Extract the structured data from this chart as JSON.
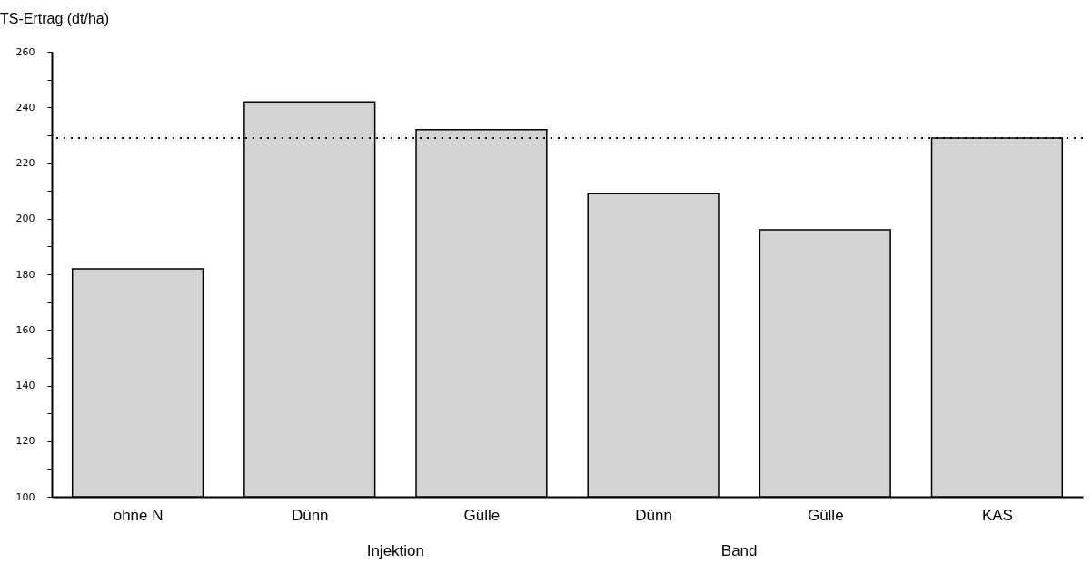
{
  "chart_data": {
    "type": "bar",
    "ylabel": "TS-Ertrag (dt/ha)",
    "categories": [
      "ohne N",
      "Dünn",
      "Gülle",
      "Dünn",
      "Gülle",
      "KAS"
    ],
    "values": [
      182,
      242,
      232,
      209,
      196,
      229
    ],
    "color": "#d4d4d4",
    "ylim": [
      100,
      260
    ],
    "yticks": [
      100,
      {
        "value": 110,
        "label": null
      },
      120,
      {
        "value": 130,
        "label": null
      },
      140,
      {
        "value": 150,
        "label": null
      },
      160,
      {
        "value": 170,
        "label": null
      },
      180,
      {
        "value": 190,
        "label": null
      },
      200,
      {
        "value": 210,
        "label": null
      },
      220,
      {
        "value": 230,
        "label": null
      },
      240,
      {
        "value": 250,
        "label": null
      },
      260
    ],
    "ref_lines": [
      {
        "axis": "y",
        "value": 229,
        "color": "#000000",
        "line_style": "dotted"
      }
    ],
    "annotations": [
      "Injektion",
      "Band"
    ],
    "grid": false
  }
}
